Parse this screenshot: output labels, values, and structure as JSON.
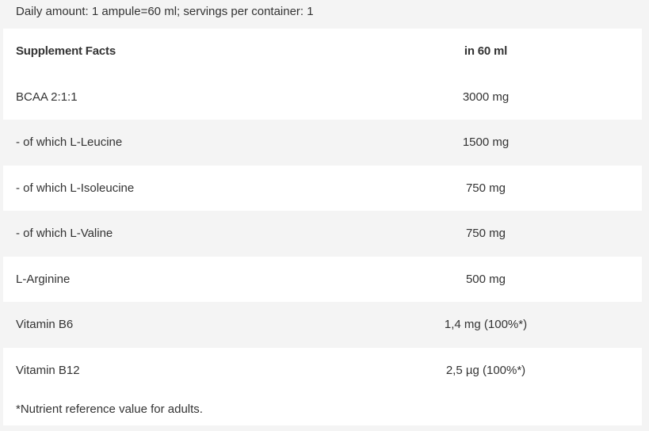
{
  "intro": "Daily amount: 1 ampule=60 ml; servings per container: 1",
  "table": {
    "headers": [
      "Supplement Facts",
      "in 60 ml"
    ],
    "rows": [
      [
        "BCAA 2:1:1",
        "3000 mg"
      ],
      [
        "- of which L-Leucine",
        "1500 mg"
      ],
      [
        "- of which L-Isoleucine",
        "750 mg"
      ],
      [
        "- of which L-Valine",
        "750 mg"
      ],
      [
        "L-Arginine",
        "500 mg"
      ],
      [
        "Vitamin B6",
        "1,4 mg (100%*)"
      ],
      [
        "Vitamin B12",
        "2,5 µg (100%*)"
      ]
    ]
  },
  "footnote": "*Nutrient reference value for adults.",
  "colors": {
    "background": "#f4f4f4",
    "row_alt": "#ffffff",
    "text": "#333333"
  }
}
